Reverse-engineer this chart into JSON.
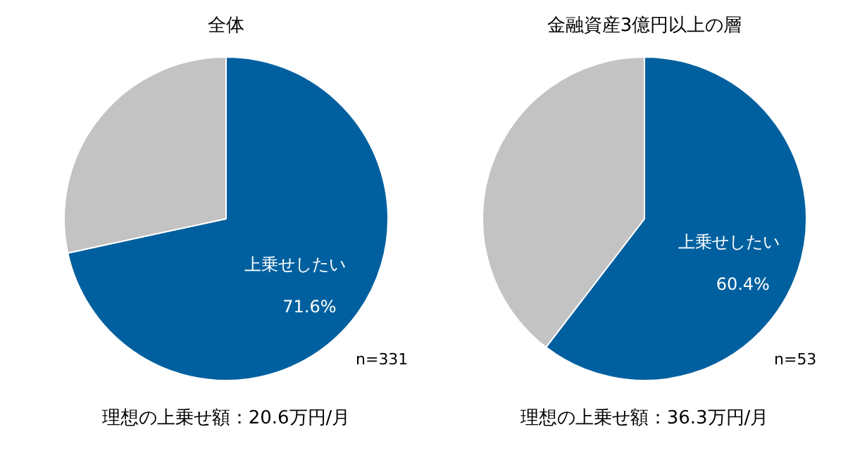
{
  "chart_data": [
    {
      "type": "pie",
      "title": "全体",
      "categories": [
        "上乗せしたい",
        null
      ],
      "values": [
        71.6,
        28.4
      ],
      "colors": [
        "#00609f",
        "#c3c3c3"
      ],
      "value_labels": [
        "71.6%",
        null
      ],
      "annotations": [
        "n=331",
        "理想の上乗せ額：20.6万円/月"
      ]
    },
    {
      "type": "pie",
      "title": "金融資産3億円以上の層",
      "categories": [
        "上乗せしたい",
        null
      ],
      "values": [
        60.4,
        39.6
      ],
      "colors": [
        "#00609f",
        "#c3c3c3"
      ],
      "value_labels": [
        "60.4%",
        null
      ],
      "annotations": [
        "n=53",
        "理想の上乗せ額：36.3万円/月"
      ]
    }
  ]
}
